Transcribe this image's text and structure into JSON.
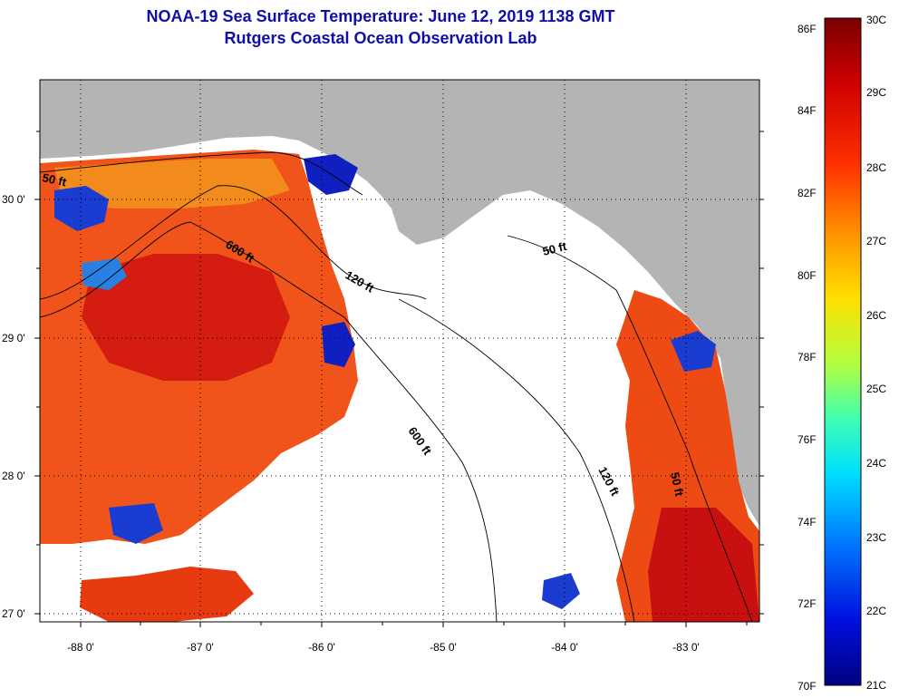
{
  "title_line1": "NOAA-19 Sea Surface Temperature:  June 12, 2019 1138 GMT",
  "title_line2": "Rutgers Coastal Ocean Observation Lab",
  "lat_labels": [
    "30 0'",
    "29 0'",
    "28 0'",
    "27 0'"
  ],
  "lon_labels": [
    "-88 0'",
    "-87 0'",
    "-86 0'",
    "-85 0'",
    "-84 0'",
    "-83 0'"
  ],
  "contour_labels": {
    "c50_west": "50 ft",
    "c600_north": "600 ft",
    "c120_north": "120 ft",
    "c50_east": "50 ft",
    "c600_south": "600 ft",
    "c120_south": "120 ft",
    "c50_south": "50 ft"
  },
  "colorbar": {
    "fahrenheit": [
      "86F",
      "84F",
      "82F",
      "80F",
      "78F",
      "76F",
      "74F",
      "72F",
      "70F"
    ],
    "celsius": [
      "30C",
      "29C",
      "28C",
      "27C",
      "26C",
      "25C",
      "24C",
      "23C",
      "22C",
      "21C"
    ]
  },
  "colors": {
    "title": "#1010a8",
    "land": "#b4b4b4",
    "no_data": "#ffffff",
    "warm": "#e83a10",
    "hot": "#c81010",
    "cool": "#1020c0"
  }
}
